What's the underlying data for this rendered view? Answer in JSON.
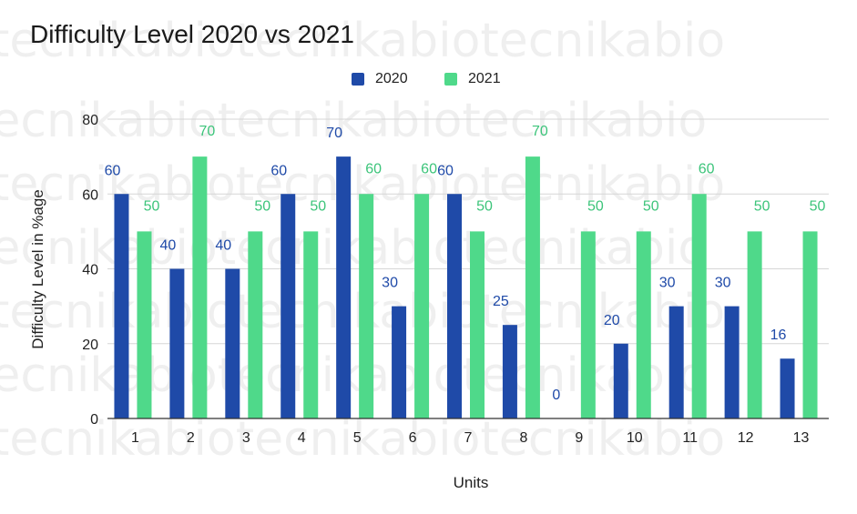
{
  "chart_data": {
    "type": "bar",
    "title": "Difficulty Level 2020 vs 2021",
    "xlabel": "Units",
    "ylabel": "Difficulty Level in %age",
    "ylim": [
      0,
      80
    ],
    "yticks": [
      0,
      20,
      40,
      60,
      80
    ],
    "categories": [
      "1",
      "2",
      "3",
      "4",
      "5",
      "6",
      "7",
      "8",
      "9",
      "10",
      "11",
      "12",
      "13"
    ],
    "series": [
      {
        "name": "2020",
        "color": "#1f4aa8",
        "label_color": "#1f4aa8",
        "values": [
          60,
          40,
          40,
          60,
          70,
          30,
          60,
          25,
          0,
          20,
          30,
          30,
          16
        ]
      },
      {
        "name": "2021",
        "color": "#4fd98a",
        "label_color": "#3cc47a",
        "values": [
          50,
          70,
          50,
          50,
          60,
          60,
          50,
          70,
          50,
          50,
          60,
          50,
          50
        ]
      }
    ],
    "grid": true,
    "legend_position": "top-center",
    "data_labels": true
  },
  "watermark": {
    "text": "tecnikabiotecnikabiotecnikabio",
    "color": "#c9c9c9"
  }
}
